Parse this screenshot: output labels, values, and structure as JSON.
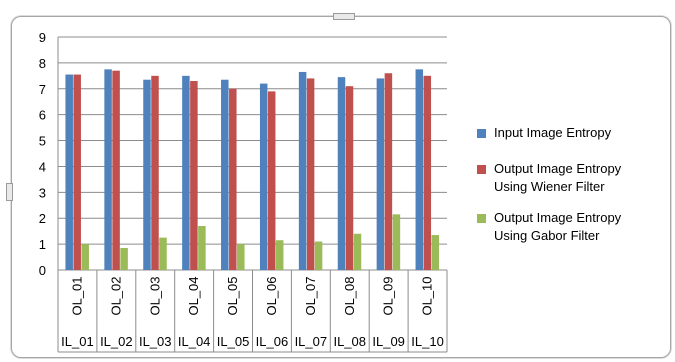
{
  "chart_data": {
    "type": "bar",
    "title": "",
    "xlabel": "",
    "ylabel": "",
    "ylim": [
      0,
      9
    ],
    "yticks": [
      "0",
      "1",
      "2",
      "3",
      "4",
      "5",
      "6",
      "7",
      "8",
      "9"
    ],
    "grid": true,
    "legend_position": "right",
    "categories_top": [
      "OL_01",
      "OL_02",
      "OL_03",
      "OL_04",
      "OL_05",
      "OL_06",
      "OL_07",
      "OL_08",
      "OL_09",
      "OL_10"
    ],
    "categories_bottom": [
      "IL_01",
      "IL_02",
      "IL_03",
      "IL_04",
      "IL_05",
      "IL_06",
      "IL_07",
      "IL_08",
      "IL_09",
      "IL_10"
    ],
    "series": [
      {
        "name": "Input Image Entropy",
        "color": "#4f81bd",
        "values": [
          7.55,
          7.75,
          7.35,
          7.5,
          7.35,
          7.2,
          7.65,
          7.45,
          7.4,
          7.75
        ]
      },
      {
        "name": "Output Image Entropy Using Wiener Filter",
        "color": "#c0504d",
        "values": [
          7.55,
          7.7,
          7.5,
          7.3,
          7.0,
          6.9,
          7.4,
          7.1,
          7.6,
          7.5
        ]
      },
      {
        "name": "Output Image Entropy Using Gabor Filter",
        "color": "#9bbb59",
        "values": [
          1.0,
          0.85,
          1.25,
          1.7,
          1.0,
          1.15,
          1.1,
          1.4,
          2.15,
          1.35
        ]
      }
    ]
  },
  "legend": {
    "items": [
      {
        "label_line1": "Input Image Entropy",
        "label_line2": ""
      },
      {
        "label_line1": "Output Image Entropy",
        "label_line2": "Using Wiener Filter"
      },
      {
        "label_line1": "Output Image Entropy",
        "label_line2": "Using Gabor Filter"
      }
    ]
  }
}
